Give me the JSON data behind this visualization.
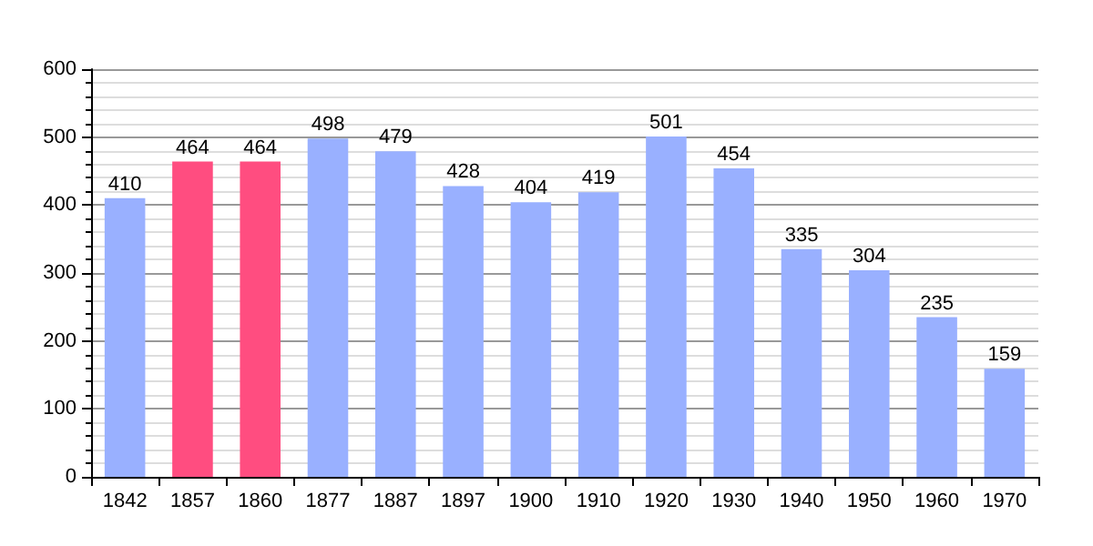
{
  "chart_data": {
    "type": "bar",
    "categories": [
      "1842",
      "1857",
      "1860",
      "1877",
      "1887",
      "1897",
      "1900",
      "1910",
      "1920",
      "1930",
      "1940",
      "1950",
      "1960",
      "1970"
    ],
    "values": [
      410,
      464,
      464,
      498,
      479,
      428,
      404,
      419,
      501,
      454,
      335,
      304,
      235,
      159
    ],
    "colors": [
      "#99b0ff",
      "#ff4d80",
      "#ff4d80",
      "#99b0ff",
      "#99b0ff",
      "#99b0ff",
      "#99b0ff",
      "#99b0ff",
      "#99b0ff",
      "#99b0ff",
      "#99b0ff",
      "#99b0ff",
      "#99b0ff",
      "#99b0ff"
    ],
    "ylim": [
      0,
      600
    ],
    "yticks": [
      0,
      100,
      200,
      300,
      400,
      500,
      600
    ],
    "grid": true,
    "data_labels": true
  }
}
